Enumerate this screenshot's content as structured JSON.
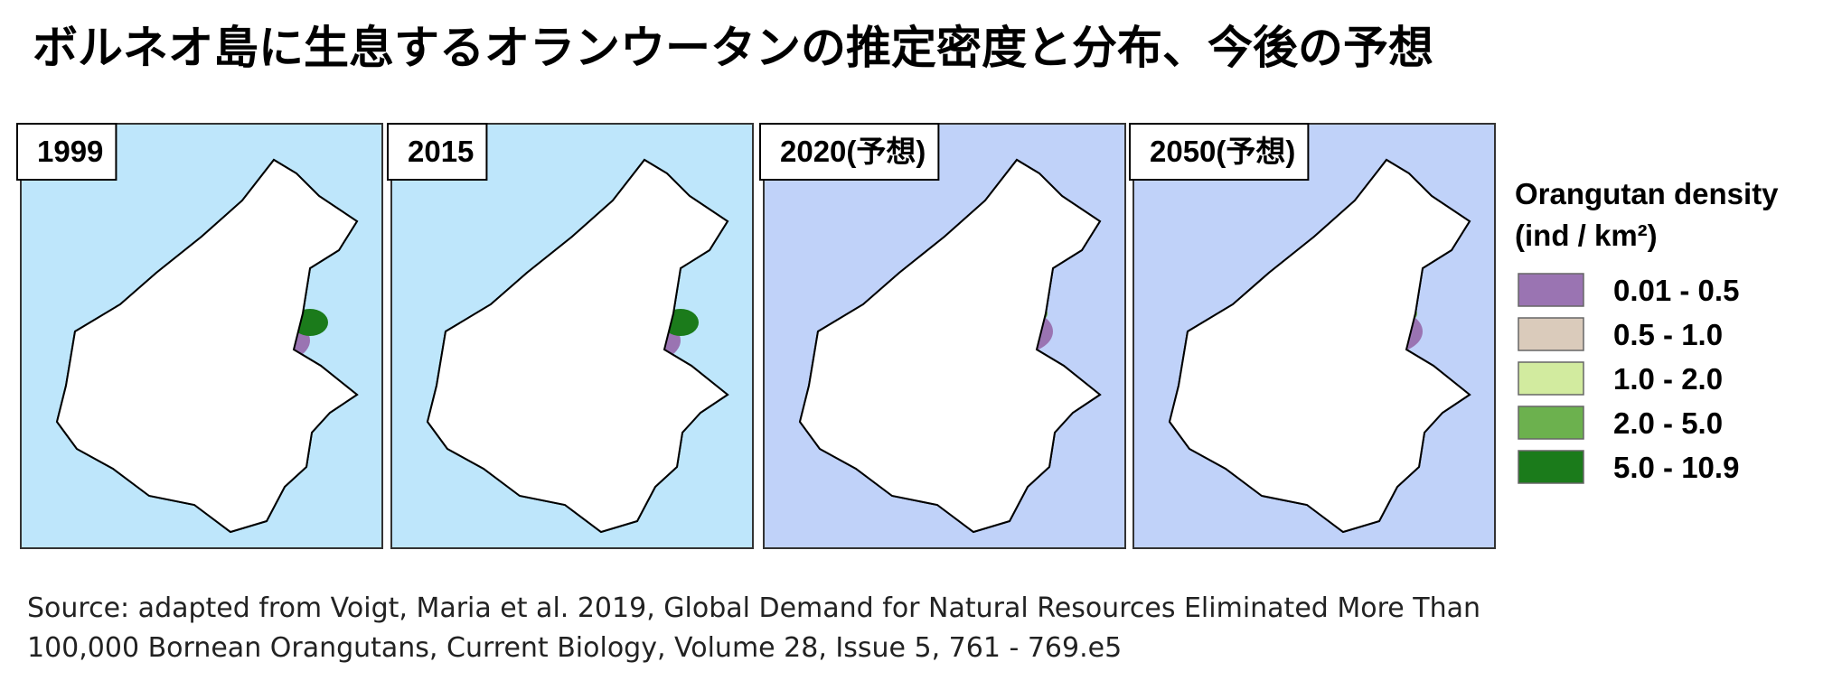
{
  "title": "ボルネオ島に生息するオランウータンの推定密度と分布、今後の予想",
  "panels": [
    {
      "label": "1999",
      "background": "#bee6fb",
      "density": "high"
    },
    {
      "label": "2015",
      "background": "#bee6fb",
      "density": "high"
    },
    {
      "label": "2020(予想)",
      "background": "#c0d2f9",
      "density": "low"
    },
    {
      "label": "2050(予想)",
      "background": "#c0d2f9",
      "density": "low"
    }
  ],
  "legend": {
    "title": [
      "Orangutan density",
      "(ind / km²)"
    ],
    "items": [
      {
        "label": "0.01 - 0.5",
        "color": "#9a74b2"
      },
      {
        "label": "0.5 - 1.0",
        "color": "#dacbbb"
      },
      {
        "label": "1.0 - 2.0",
        "color": "#d2eb9f"
      },
      {
        "label": "2.0 - 5.0",
        "color": "#6cb14e"
      },
      {
        "label": "5.0 - 10.9",
        "color": "#1b7b1b"
      }
    ]
  },
  "source": [
    "Source: adapted from Voigt, Maria et al. 2019, Global Demand for Natural Resources Eliminated More Than",
    "100,000 Bornean Orangutans, Current Biology, Volume 28, Issue 5, 761 - 769.e5"
  ]
}
